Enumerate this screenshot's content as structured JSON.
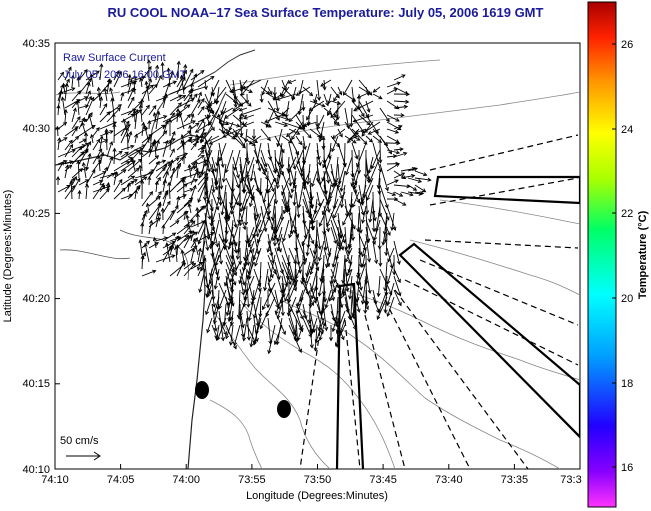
{
  "title": "RU COOL  NOAA–17  Sea Surface Temperature:  July 05, 2006 1619 GMT",
  "legend": {
    "line1": "Raw Surface Current",
    "line2": "July 05, 2006 16:00 GMT"
  },
  "scale_label": "50 cm/s",
  "axes": {
    "xlabel": "Longitude (Degrees:Minutes)",
    "ylabel": "Latitude (Degrees:Minutes)",
    "xticks": [
      "74:10",
      "74:05",
      "74:00",
      "73:55",
      "73:50",
      "73:45",
      "73:40",
      "73:35",
      "73:3"
    ],
    "yticks": [
      "40:35",
      "40:30",
      "40:25",
      "40:20",
      "40:15",
      "40:10"
    ]
  },
  "colorbar": {
    "label": "Temperature (°C)",
    "ticks": [
      "26",
      "24",
      "22",
      "20",
      "18",
      "16"
    ],
    "range": [
      15,
      27
    ]
  },
  "colors": {
    "title": "#1a1a9a",
    "legend_text": "#1a1aa0"
  }
}
